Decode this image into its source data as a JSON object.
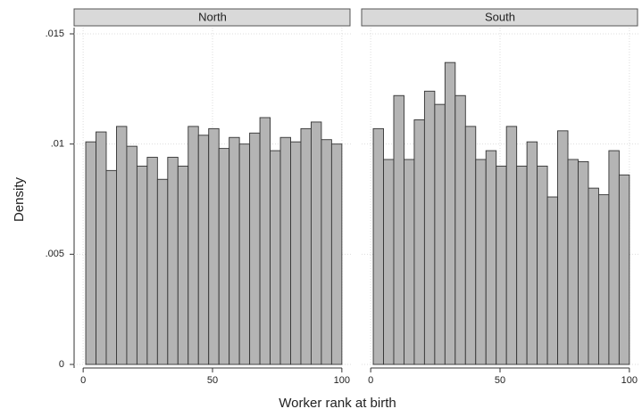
{
  "chart_data": {
    "type": "histogram",
    "ylabel": "Density",
    "xlabel": "Worker rank at birth",
    "color": "#b4b4b4",
    "grid": true,
    "ylim": [
      0,
      0.015
    ],
    "yticks": [
      0,
      {
        "value": 0.005,
        "label": ".005"
      },
      {
        "value": 0.01,
        "label": ".01"
      },
      {
        "value": 0.015,
        "label": ".015"
      }
    ],
    "xlim": [
      -3.5,
      103.5
    ],
    "xticks": [
      0,
      50,
      100
    ],
    "bins": [
      1,
      4.96,
      8.92,
      12.88,
      16.84,
      20.8,
      24.76,
      28.72,
      32.68,
      36.64,
      40.6,
      44.56,
      48.52,
      52.48,
      56.44,
      60.4,
      64.36,
      68.32,
      72.28,
      76.24,
      80.2,
      84.16,
      88.12,
      92.08,
      96.04,
      100
    ],
    "panels": [
      {
        "title": "North",
        "values": [
          0.0101,
          0.01055,
          0.0088,
          0.0108,
          0.0099,
          0.009,
          0.0094,
          0.0084,
          0.0094,
          0.009,
          0.0108,
          0.0104,
          0.0107,
          0.0098,
          0.0103,
          0.01,
          0.0105,
          0.0112,
          0.0097,
          0.0103,
          0.0101,
          0.0107,
          0.011,
          0.0102,
          0.01
        ]
      },
      {
        "title": "South",
        "values": [
          0.0107,
          0.0093,
          0.0122,
          0.0093,
          0.0111,
          0.0124,
          0.0118,
          0.0137,
          0.0122,
          0.0108,
          0.0093,
          0.0097,
          0.009,
          0.0108,
          0.009,
          0.0101,
          0.009,
          0.0076,
          0.0106,
          0.0093,
          0.0092,
          0.008,
          0.0077,
          0.0097,
          0.0086
        ]
      }
    ]
  }
}
